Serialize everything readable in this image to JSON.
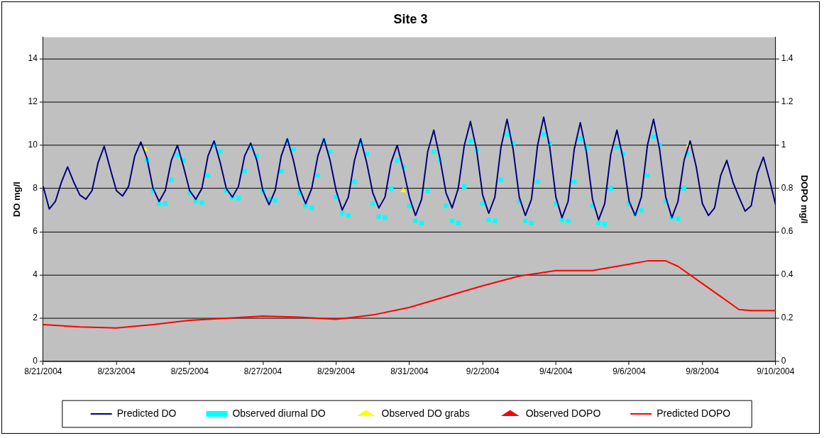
{
  "chart_data": {
    "type": "line",
    "title": "Site 3",
    "ylabel": "DO mg/l",
    "y2label": "DOPO mg/l",
    "xlim": [
      "2004-08-21",
      "2004-09-10"
    ],
    "xticks": [
      {
        "value": "2004-08-21",
        "label": "8/21/2004"
      },
      {
        "value": "2004-08-23",
        "label": "8/23/2004"
      },
      {
        "value": "2004-08-25",
        "label": "8/25/2004"
      },
      {
        "value": "2004-08-27",
        "label": "8/27/2004"
      },
      {
        "value": "2004-08-29",
        "label": "8/29/2004"
      },
      {
        "value": "2004-08-31",
        "label": "8/31/2004"
      },
      {
        "value": "2004-09-02",
        "label": "9/2/2004"
      },
      {
        "value": "2004-09-04",
        "label": "9/4/2004"
      },
      {
        "value": "2004-09-06",
        "label": "9/6/2004"
      },
      {
        "value": "2004-09-08",
        "label": "9/8/2004"
      },
      {
        "value": "2004-09-10",
        "label": "9/10/2004"
      }
    ],
    "ylim": [
      0,
      15
    ],
    "yticks": [
      0,
      2,
      4,
      6,
      8,
      10,
      12,
      14
    ],
    "y2lim": [
      0,
      1.5
    ],
    "y2ticks": [
      0,
      0.2,
      0.4,
      0.6,
      0.8,
      1,
      1.2,
      1.4
    ],
    "grid": "y",
    "legend": "bottom",
    "series": [
      {
        "name": "Predicted DO",
        "type": "line",
        "marker": "none",
        "color": "#000080",
        "x": [
          "2004-08-21T00:00",
          "2004-08-21T04:00",
          "2004-08-21T08:00",
          "2004-08-21T12:00",
          "2004-08-21T16:00",
          "2004-08-21T20:00",
          "2004-08-22T00:00",
          "2004-08-22T04:00",
          "2004-08-22T08:00",
          "2004-08-22T12:00",
          "2004-08-22T16:00",
          "2004-08-22T20:00",
          "2004-08-23T00:00",
          "2004-08-23T04:00",
          "2004-08-23T08:00",
          "2004-08-23T12:00",
          "2004-08-23T16:00",
          "2004-08-23T20:00",
          "2004-08-24T00:00",
          "2004-08-24T04:00",
          "2004-08-24T08:00",
          "2004-08-24T12:00",
          "2004-08-24T16:00",
          "2004-08-24T20:00",
          "2004-08-25T00:00",
          "2004-08-25T04:00",
          "2004-08-25T08:00",
          "2004-08-25T12:00",
          "2004-08-25T16:00",
          "2004-08-25T20:00",
          "2004-08-26T00:00",
          "2004-08-26T04:00",
          "2004-08-26T08:00",
          "2004-08-26T12:00",
          "2004-08-26T16:00",
          "2004-08-26T20:00",
          "2004-08-27T00:00",
          "2004-08-27T04:00",
          "2004-08-27T08:00",
          "2004-08-27T12:00",
          "2004-08-27T16:00",
          "2004-08-27T20:00",
          "2004-08-28T00:00",
          "2004-08-28T04:00",
          "2004-08-28T08:00",
          "2004-08-28T12:00",
          "2004-08-28T16:00",
          "2004-08-28T20:00",
          "2004-08-29T00:00",
          "2004-08-29T04:00",
          "2004-08-29T08:00",
          "2004-08-29T12:00",
          "2004-08-29T16:00",
          "2004-08-29T20:00",
          "2004-08-30T00:00",
          "2004-08-30T04:00",
          "2004-08-30T08:00",
          "2004-08-30T12:00",
          "2004-08-30T16:00",
          "2004-08-30T20:00",
          "2004-08-31T00:00",
          "2004-08-31T04:00",
          "2004-08-31T08:00",
          "2004-08-31T12:00",
          "2004-08-31T16:00",
          "2004-08-31T20:00",
          "2004-09-01T00:00",
          "2004-09-01T04:00",
          "2004-09-01T08:00",
          "2004-09-01T12:00",
          "2004-09-01T16:00",
          "2004-09-01T20:00",
          "2004-09-02T00:00",
          "2004-09-02T04:00",
          "2004-09-02T08:00",
          "2004-09-02T12:00",
          "2004-09-02T16:00",
          "2004-09-02T20:00",
          "2004-09-03T00:00",
          "2004-09-03T04:00",
          "2004-09-03T08:00",
          "2004-09-03T12:00",
          "2004-09-03T16:00",
          "2004-09-03T20:00",
          "2004-09-04T00:00",
          "2004-09-04T04:00",
          "2004-09-04T08:00",
          "2004-09-04T12:00",
          "2004-09-04T16:00",
          "2004-09-04T20:00",
          "2004-09-05T00:00",
          "2004-09-05T04:00",
          "2004-09-05T08:00",
          "2004-09-05T12:00",
          "2004-09-05T16:00",
          "2004-09-05T20:00",
          "2004-09-06T00:00",
          "2004-09-06T04:00",
          "2004-09-06T08:00",
          "2004-09-06T12:00",
          "2004-09-06T16:00",
          "2004-09-06T20:00",
          "2004-09-07T00:00",
          "2004-09-07T04:00",
          "2004-09-07T08:00",
          "2004-09-07T12:00",
          "2004-09-07T16:00",
          "2004-09-07T20:00",
          "2004-09-08T00:00",
          "2004-09-08T04:00",
          "2004-09-08T08:00",
          "2004-09-08T12:00",
          "2004-09-08T16:00",
          "2004-09-08T20:00",
          "2004-09-09T00:00",
          "2004-09-09T04:00",
          "2004-09-09T08:00",
          "2004-09-09T12:00",
          "2004-09-09T16:00",
          "2004-09-09T20:00",
          "2004-09-10T00:00"
        ],
        "values": [
          8.1,
          7.05,
          7.4,
          8.3,
          9.0,
          8.3,
          7.7,
          7.5,
          7.9,
          9.2,
          9.95,
          8.9,
          7.9,
          7.65,
          8.1,
          9.5,
          10.15,
          9.4,
          8.0,
          7.4,
          7.9,
          9.3,
          10.0,
          9.0,
          7.9,
          7.5,
          8.0,
          9.5,
          10.2,
          9.2,
          8.0,
          7.6,
          8.1,
          9.5,
          10.1,
          9.3,
          7.9,
          7.25,
          7.9,
          9.5,
          10.3,
          9.3,
          8.0,
          7.3,
          8.0,
          9.5,
          10.3,
          9.3,
          7.9,
          7.0,
          7.6,
          9.3,
          10.3,
          9.2,
          7.8,
          7.1,
          7.6,
          9.2,
          10.0,
          8.9,
          7.6,
          6.75,
          7.5,
          9.7,
          10.7,
          9.4,
          7.8,
          7.1,
          8.0,
          10.0,
          11.1,
          9.8,
          7.7,
          6.85,
          7.6,
          9.9,
          11.2,
          9.8,
          7.6,
          6.75,
          7.5,
          10.0,
          11.3,
          9.9,
          7.6,
          6.65,
          7.4,
          9.8,
          11.05,
          9.7,
          7.5,
          6.55,
          7.3,
          9.6,
          10.7,
          9.4,
          7.4,
          6.75,
          7.6,
          10.0,
          11.2,
          9.8,
          7.6,
          6.65,
          7.4,
          9.3,
          10.2,
          9.0,
          7.3,
          6.75,
          7.1,
          8.6,
          9.3,
          8.3,
          7.6,
          6.95,
          7.2,
          8.7,
          9.45,
          8.4,
          7.25
        ]
      },
      {
        "name": "Observed diurnal DO",
        "type": "scatter",
        "marker": "square",
        "color": "#00ffff",
        "x": [
          "2004-08-23T20:00",
          "2004-08-24T00:00",
          "2004-08-24T04:00",
          "2004-08-24T08:00",
          "2004-08-24T12:00",
          "2004-08-24T16:00",
          "2004-08-24T20:00",
          "2004-08-25T00:00",
          "2004-08-25T04:00",
          "2004-08-25T08:00",
          "2004-08-25T12:00",
          "2004-08-25T16:00",
          "2004-08-25T20:00",
          "2004-08-26T00:00",
          "2004-08-26T04:00",
          "2004-08-26T08:00",
          "2004-08-26T12:00",
          "2004-08-26T16:00",
          "2004-08-26T20:00",
          "2004-08-27T00:00",
          "2004-08-27T04:00",
          "2004-08-27T08:00",
          "2004-08-27T12:00",
          "2004-08-27T16:00",
          "2004-08-27T20:00",
          "2004-08-28T00:00",
          "2004-08-28T04:00",
          "2004-08-28T08:00",
          "2004-08-28T12:00",
          "2004-08-28T16:00",
          "2004-08-28T20:00",
          "2004-08-29T00:00",
          "2004-08-29T04:00",
          "2004-08-29T08:00",
          "2004-08-29T12:00",
          "2004-08-29T16:00",
          "2004-08-29T20:00",
          "2004-08-30T00:00",
          "2004-08-30T04:00",
          "2004-08-30T08:00",
          "2004-08-30T12:00",
          "2004-08-30T16:00",
          "2004-08-30T20:00",
          "2004-08-31T00:00",
          "2004-08-31T04:00",
          "2004-08-31T08:00",
          "2004-08-31T12:00",
          "2004-08-31T16:00",
          "2004-08-31T20:00",
          "2004-09-01T00:00",
          "2004-09-01T04:00",
          "2004-09-01T08:00",
          "2004-09-01T12:00",
          "2004-09-01T16:00",
          "2004-09-01T20:00",
          "2004-09-02T00:00",
          "2004-09-02T04:00",
          "2004-09-02T08:00",
          "2004-09-02T12:00",
          "2004-09-02T16:00",
          "2004-09-02T20:00",
          "2004-09-03T00:00",
          "2004-09-03T04:00",
          "2004-09-03T08:00",
          "2004-09-03T12:00",
          "2004-09-03T16:00",
          "2004-09-03T20:00",
          "2004-09-04T00:00",
          "2004-09-04T04:00",
          "2004-09-04T08:00",
          "2004-09-04T12:00",
          "2004-09-04T16:00",
          "2004-09-04T20:00",
          "2004-09-05T00:00",
          "2004-09-05T04:00",
          "2004-09-05T08:00",
          "2004-09-05T12:00",
          "2004-09-05T16:00",
          "2004-09-05T20:00",
          "2004-09-06T00:00",
          "2004-09-06T04:00",
          "2004-09-06T08:00",
          "2004-09-06T12:00",
          "2004-09-06T16:00",
          "2004-09-06T20:00",
          "2004-09-07T00:00",
          "2004-09-07T04:00",
          "2004-09-07T08:00",
          "2004-09-07T12:00",
          "2004-09-07T14:00"
        ],
        "values": [
          9.3,
          7.9,
          7.3,
          7.3,
          8.4,
          9.55,
          9.3,
          7.8,
          7.4,
          7.35,
          8.6,
          10.0,
          9.7,
          7.9,
          7.6,
          7.55,
          8.8,
          9.9,
          9.5,
          7.9,
          7.5,
          7.45,
          8.8,
          10.2,
          9.8,
          7.8,
          7.2,
          7.1,
          8.6,
          10.2,
          9.7,
          7.6,
          6.85,
          6.75,
          8.3,
          10.1,
          9.6,
          7.3,
          6.7,
          6.65,
          8.0,
          9.3,
          9.0,
          7.2,
          6.5,
          6.4,
          7.9,
          9.7,
          9.3,
          7.2,
          6.5,
          6.4,
          8.1,
          10.2,
          9.8,
          7.3,
          6.55,
          6.5,
          8.4,
          10.5,
          10.1,
          7.4,
          6.5,
          6.4,
          8.3,
          10.5,
          10.1,
          7.3,
          6.55,
          6.5,
          8.3,
          10.3,
          9.9,
          7.2,
          6.4,
          6.35,
          8.0,
          9.9,
          9.6,
          7.3,
          6.85,
          7.0,
          8.6,
          10.4,
          10.0,
          7.4,
          6.65,
          6.6,
          8.0,
          9.6
        ]
      },
      {
        "name": "Observed DO grabs",
        "type": "scatter",
        "marker": "triangle",
        "color": "#ffff00",
        "x": [
          "2004-08-23T19:00",
          "2004-08-30T20:00",
          "2004-09-07T15:00"
        ],
        "values": [
          9.8,
          7.9,
          10.0
        ]
      },
      {
        "name": "Observed DOPO",
        "type": "scatter",
        "marker": "triangle",
        "color": "#ff0000",
        "axis": "y2"
      },
      {
        "name": "Predicted DOPO",
        "type": "line",
        "marker": "none",
        "color": "#ff0000",
        "axis": "y2",
        "x": [
          "2004-08-21T00:00",
          "2004-08-22T00:00",
          "2004-08-23T00:00",
          "2004-08-24T00:00",
          "2004-08-25T00:00",
          "2004-08-26T00:00",
          "2004-08-27T00:00",
          "2004-08-28T00:00",
          "2004-08-29T00:00",
          "2004-08-30T00:00",
          "2004-08-31T00:00",
          "2004-09-01T00:00",
          "2004-09-01T12:00",
          "2004-09-02T00:00",
          "2004-09-03T00:00",
          "2004-09-04T00:00",
          "2004-09-05T00:00",
          "2004-09-06T00:00",
          "2004-09-06T12:00",
          "2004-09-07T00:00",
          "2004-09-07T08:00",
          "2004-09-08T00:00",
          "2004-09-08T12:00",
          "2004-09-09T00:00",
          "2004-09-09T08:00",
          "2004-09-10T00:00"
        ],
        "values": [
          0.17,
          0.16,
          0.155,
          0.17,
          0.19,
          0.2,
          0.21,
          0.205,
          0.195,
          0.215,
          0.25,
          0.3,
          0.325,
          0.35,
          0.395,
          0.42,
          0.42,
          0.45,
          0.465,
          0.465,
          0.44,
          0.36,
          0.3,
          0.24,
          0.235,
          0.235
        ]
      }
    ]
  }
}
